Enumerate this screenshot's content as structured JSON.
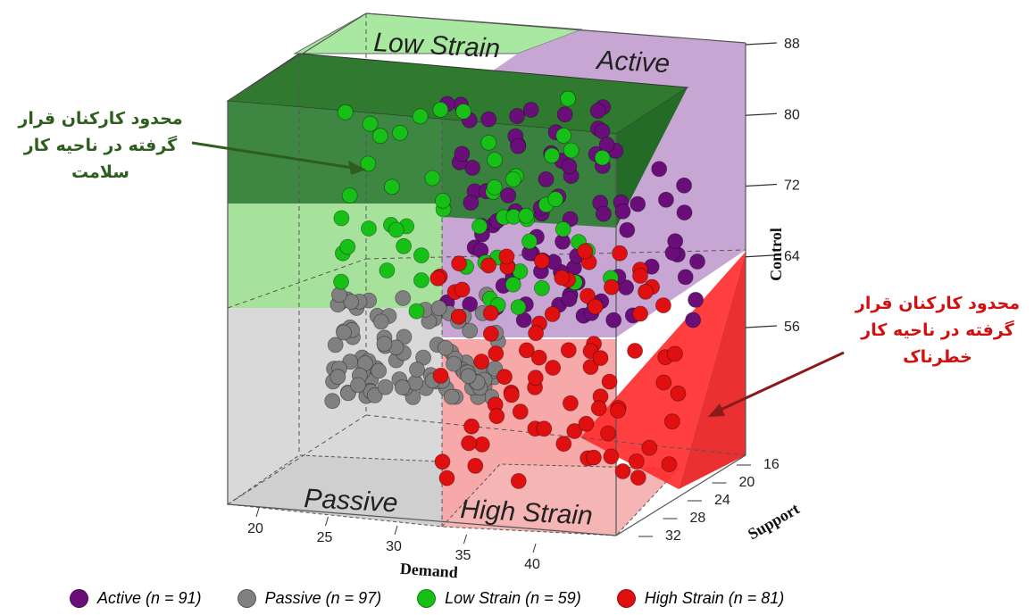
{
  "chart_data": {
    "type": "scatter",
    "projection": "3d",
    "axes": {
      "x": {
        "label": "Demand",
        "ticks": [
          20,
          25,
          30,
          35,
          40
        ],
        "range": [
          18,
          43
        ]
      },
      "y": {
        "label": "Support",
        "ticks": [
          16,
          20,
          24,
          28,
          32
        ],
        "range": [
          14,
          34
        ]
      },
      "z": {
        "label": "Control",
        "ticks": [
          56,
          64,
          72,
          80,
          88
        ],
        "range": [
          50,
          88
        ]
      }
    },
    "quadrant_labels": {
      "low_strain": "Low Strain",
      "active": "Active",
      "passive": "Passive",
      "high_strain": "High Strain"
    },
    "annotations": {
      "safe_zone": "محدود کارکنان قرار گرفته در ناحیه کار سلامت",
      "danger_zone": "محدود کارکنان قرار گرفته در ناحیه کار خطرناک"
    },
    "series": [
      {
        "name": "Active (n = 91)",
        "color": "#6a0f7a",
        "n": 91
      },
      {
        "name": "Passive (n = 97)",
        "color": "#808080",
        "n": 97
      },
      {
        "name": "Low Strain (n = 59)",
        "color": "#17c017",
        "n": 59
      },
      {
        "name": "High Strain (n = 81)",
        "color": "#e01010",
        "n": 81
      }
    ],
    "grid": false,
    "legend": "bottom"
  }
}
